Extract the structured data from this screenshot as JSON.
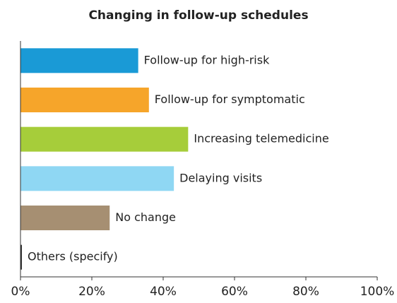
{
  "chart_data": {
    "type": "bar",
    "orientation": "horizontal",
    "title": "Changing in follow-up schedules",
    "categories": [
      "Follow-up for high-risk",
      "Follow-up for symptomatic",
      "Increasing telemedicine",
      "Delaying visits",
      "No change",
      "Others (specify)"
    ],
    "values": [
      33,
      36,
      47,
      43,
      25,
      0.4
    ],
    "colors": [
      "#1a9ad6",
      "#f6a52a",
      "#a6cd3a",
      "#8fd7f3",
      "#a68f72",
      "#333333"
    ],
    "xlim": [
      0,
      100
    ],
    "xticks": [
      {
        "value": 0,
        "label": "0%"
      },
      {
        "value": 20,
        "label": "20%"
      },
      {
        "value": 40,
        "label": "40%"
      },
      {
        "value": 60,
        "label": "60%"
      },
      {
        "value": 80,
        "label": "80%"
      },
      {
        "value": 100,
        "label": "100%"
      }
    ]
  }
}
